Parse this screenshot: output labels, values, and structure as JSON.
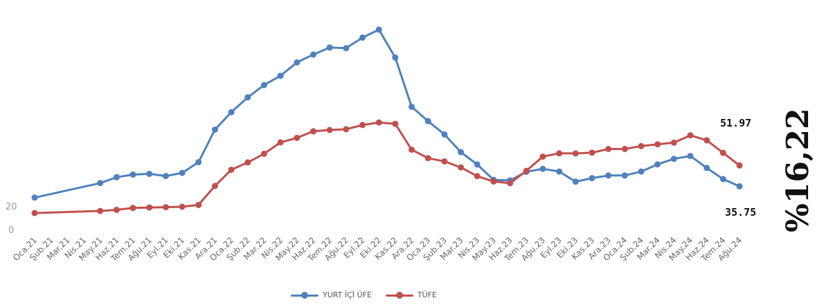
{
  "chart_data": {
    "type": "line",
    "categories": [
      "Oca.21",
      "Şub.21",
      "Mar.21",
      "Nis.21",
      "May.21",
      "Haz.21",
      "Tem.21",
      "Ağu.21",
      "Eyl.21",
      "Eki.21",
      "Kas.21",
      "Ara.21",
      "Oca.22",
      "Şub.22",
      "Mar.22",
      "Nis.22",
      "May.22",
      "Haz.22",
      "Tem.22",
      "Ağu.22",
      "Eyl.22",
      "Eki.22",
      "Kas.22",
      "Ara.22",
      "Oca.23",
      "Şub.23",
      "Mar.23",
      "Nis.23",
      "May.23",
      "Haz.23",
      "Tem.23",
      "Ağu.23",
      "Eyl.23",
      "Eki.23",
      "Kas.23",
      "Ara.23",
      "Oca.24",
      "Şub.24",
      "Mar.24",
      "Nis.24",
      "May.24",
      "Haz.24",
      "Tem.24",
      "Ağu.24"
    ],
    "series": [
      {
        "name": "YURT İÇİ ÜFE",
        "color": "#4f81bd",
        "values": [
          27.0,
          null,
          null,
          null,
          38.3,
          42.9,
          44.9,
          45.5,
          43.8,
          46.2,
          54.6,
          79.9,
          93.5,
          105.0,
          114.6,
          121.8,
          132.2,
          138.3,
          143.8,
          143.3,
          151.5,
          157.7,
          136.0,
          97.7,
          86.5,
          76.2,
          62.4,
          52.8,
          40.8,
          40.4,
          47.1,
          49.4,
          47.3,
          39.4,
          42.2,
          44.2,
          44.2,
          47.3,
          52.9,
          57.2,
          59.4,
          50.1,
          41.4,
          35.8
        ]
      },
      {
        "name": "TÜFE",
        "color": "#c0504d",
        "values": [
          15.0,
          null,
          null,
          null,
          16.6,
          17.5,
          19.0,
          19.3,
          19.6,
          19.9,
          21.3,
          36.1,
          48.7,
          54.4,
          61.1,
          70.0,
          73.5,
          78.6,
          79.6,
          80.2,
          83.5,
          85.5,
          84.4,
          64.3,
          57.7,
          55.2,
          50.5,
          43.7,
          39.6,
          38.2,
          47.8,
          58.9,
          61.5,
          61.4,
          62.0,
          64.8,
          64.9,
          67.1,
          68.5,
          69.8,
          75.5,
          71.6,
          61.8,
          52.0
        ]
      }
    ],
    "ylim": [
      0,
      170
    ],
    "y_ticks": [
      "0",
      "20"
    ],
    "annotations": {
      "ufe_last": "35.75",
      "tufe_last": "51.97",
      "side_label": "%16,22"
    },
    "legend_position": "bottom",
    "grid": false
  }
}
